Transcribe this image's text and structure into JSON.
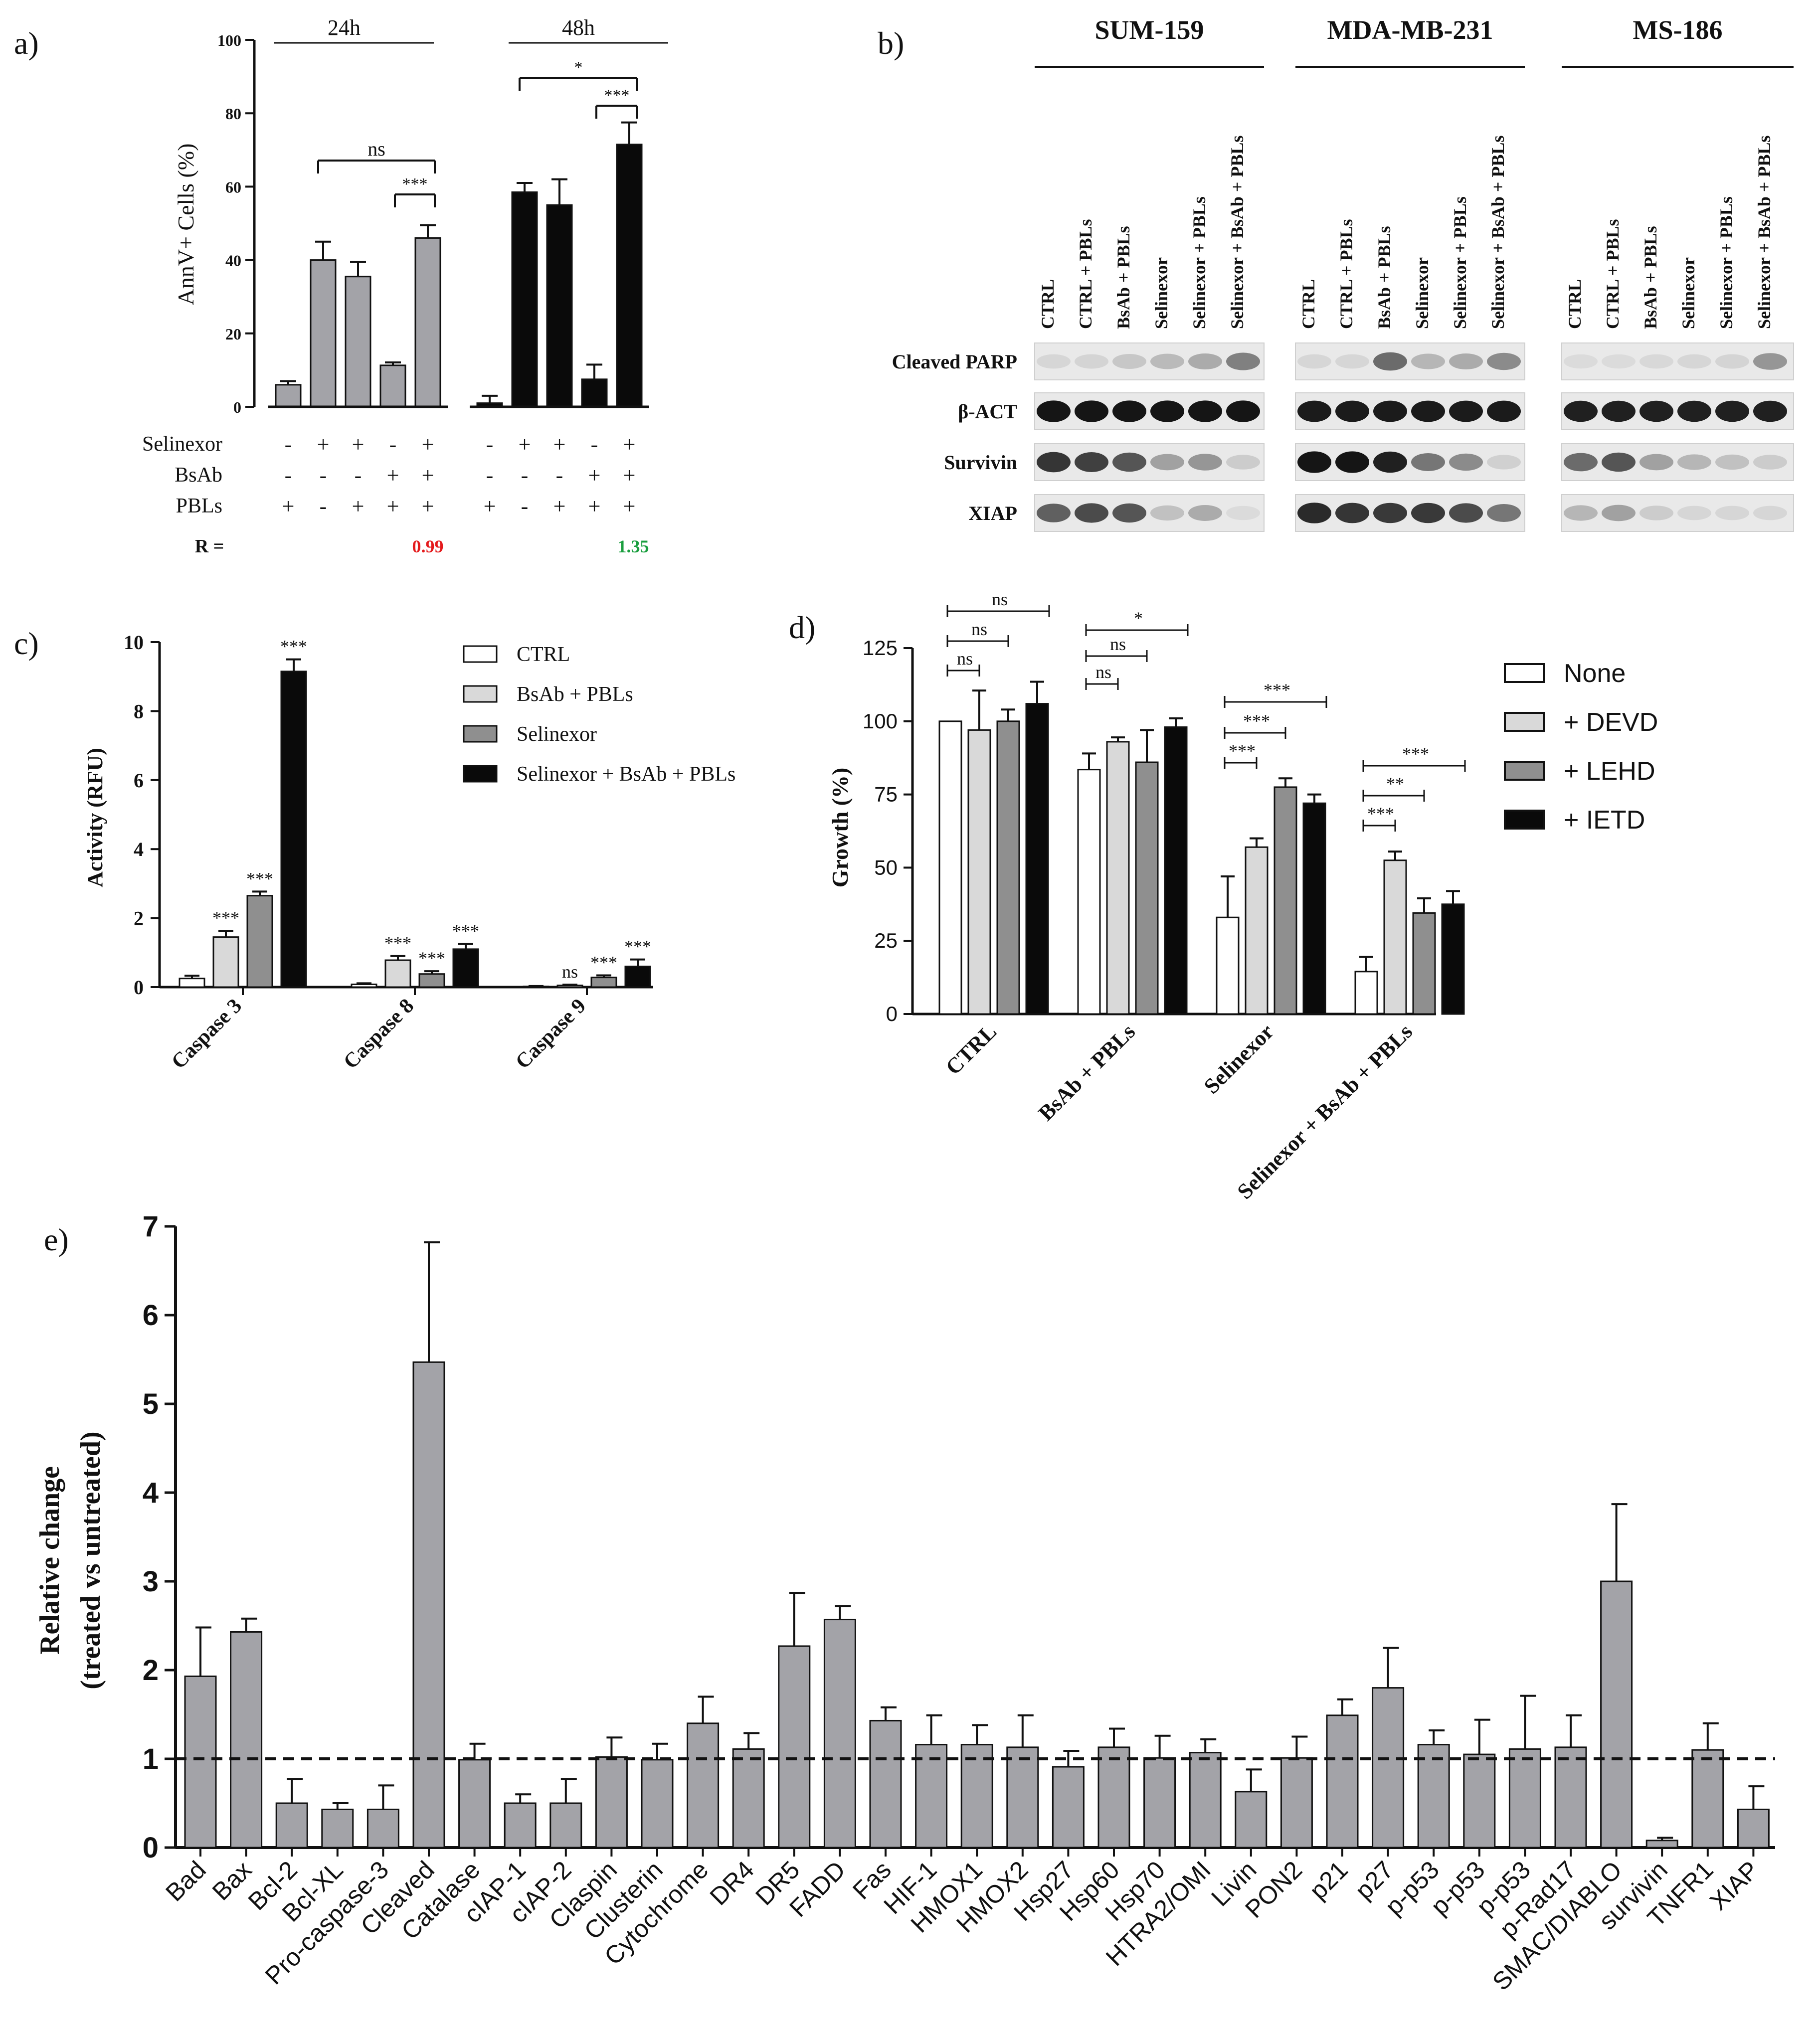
{
  "colors": {
    "black": "#0a0a0a",
    "white": "#ffffff",
    "light_gray": "#d9d9d9",
    "mid_gray": "#8f8f8f",
    "gray_e": "#a3a3a8",
    "red": "#e41a1c",
    "green": "#1a9e3f"
  },
  "chart_data": [
    {
      "panel": "a)",
      "type": "bar",
      "ylabel": "AnnV+ Cells (%)",
      "ylim": [
        0,
        100
      ],
      "yticks": [
        "0",
        "20",
        "40",
        "60",
        "80",
        "100"
      ],
      "groups": [
        {
          "title": "24h",
          "values": [
            6,
            40,
            35.5,
            11.3,
            46
          ],
          "errors": [
            1,
            5,
            4,
            0.8,
            3.5
          ],
          "color": "gray"
        },
        {
          "title": "48h",
          "values": [
            1,
            58.5,
            55,
            7.5,
            71.5
          ],
          "errors": [
            2,
            2.5,
            7,
            4,
            6
          ],
          "color": "black"
        }
      ],
      "condition_rows": [
        {
          "label": "Selinexor",
          "signs": [
            "-",
            "+",
            "+",
            "-",
            "+"
          ]
        },
        {
          "label": "BsAb",
          "signs": [
            "-",
            "-",
            "-",
            "+",
            "+"
          ]
        },
        {
          "label": "PBLs",
          "signs": [
            "+",
            "-",
            "+",
            "+",
            "+"
          ]
        }
      ],
      "r_label": "R =",
      "r_values": [
        "0.99",
        "1.35"
      ],
      "sig": [
        "ns",
        "***",
        "*",
        "***"
      ]
    },
    {
      "panel": "c)",
      "type": "bar",
      "ylabel": "Activity (RFU)",
      "ylim": [
        0,
        10
      ],
      "yticks": [
        "0",
        "2",
        "4",
        "6",
        "8",
        "10"
      ],
      "categories": [
        "Caspase 3",
        "Caspase 8",
        "Caspase 9"
      ],
      "series": [
        {
          "name": "CTRL",
          "values": [
            0.25,
            0.08,
            0.02
          ],
          "errors": [
            0.08,
            0.03,
            0.01
          ]
        },
        {
          "name": "BsAb + PBLs",
          "values": [
            1.45,
            0.78,
            0.05
          ],
          "errors": [
            0.18,
            0.12,
            0.02
          ]
        },
        {
          "name": "Selinexor",
          "values": [
            2.65,
            0.38,
            0.28
          ],
          "errors": [
            0.12,
            0.08,
            0.06
          ]
        },
        {
          "name": "Selinexor + BsAb + PBLs",
          "values": [
            9.15,
            1.1,
            0.6
          ],
          "errors": [
            0.35,
            0.15,
            0.2
          ]
        }
      ],
      "sig": [
        [
          "",
          "***",
          "***",
          "***"
        ],
        [
          "",
          "***",
          "***",
          "***"
        ],
        [
          "",
          "ns",
          "***",
          "***"
        ]
      ]
    },
    {
      "panel": "d)",
      "type": "bar",
      "ylabel": "Growth (%)",
      "ylim": [
        0,
        125
      ],
      "yticks": [
        "0",
        "25",
        "50",
        "75",
        "100",
        "125"
      ],
      "categories": [
        "CTRL",
        "BsAb + PBLs",
        "Selinexor",
        "Selinexor + BsAb + PBLs"
      ],
      "series": [
        {
          "name": "None",
          "values": [
            100,
            83.5,
            33,
            14.5
          ],
          "errors": [
            0,
            5.5,
            14,
            5
          ]
        },
        {
          "name": "+ DEVD",
          "values": [
            97,
            93,
            57,
            52.5
          ],
          "errors": [
            13.5,
            1.5,
            3,
            3
          ]
        },
        {
          "name": "+ LEHD",
          "values": [
            100,
            86,
            77.5,
            34.5
          ],
          "errors": [
            4,
            11,
            3,
            5
          ]
        },
        {
          "name": "+ IETD",
          "values": [
            106,
            98,
            72,
            37.5
          ],
          "errors": [
            7.5,
            3,
            3,
            4.5
          ]
        }
      ],
      "sig": [
        [
          "ns",
          "ns",
          "ns"
        ],
        [
          "ns",
          "ns",
          "*"
        ],
        [
          "***",
          "***",
          "***"
        ],
        [
          "***",
          "**",
          "***"
        ]
      ]
    },
    {
      "panel": "e)",
      "type": "bar",
      "ylabel": [
        "Relative change",
        "(treated vs untreated)"
      ],
      "ylim": [
        0,
        7
      ],
      "yticks": [
        "0",
        "1",
        "2",
        "3",
        "4",
        "5",
        "6",
        "7"
      ],
      "reference_line": 1,
      "categories": [
        "Bad",
        "Bax",
        "Bcl-2",
        "Bcl-XL",
        "Pro-caspase-3",
        "Cleaved",
        "Catalase",
        "cIAP-1",
        "cIAP-2",
        "Claspin",
        "Clusterin",
        "Cytochrome",
        "DR4",
        "DR5",
        "FADD",
        "Fas",
        "HIF-1",
        "HMOX1",
        "HMOX2",
        "Hsp27",
        "Hsp60",
        "Hsp70",
        "HTRA2/OMI",
        "Livin",
        "PON2",
        "p21",
        "p27",
        "p-p53",
        "p-p53",
        "p-p53",
        "p-Rad17",
        "SMAC/DIABLO",
        "survivin",
        "TNFR1",
        "XIAP"
      ],
      "values": [
        1.93,
        2.43,
        0.5,
        0.43,
        0.43,
        5.47,
        0.99,
        0.5,
        0.5,
        1.02,
        0.99,
        1.4,
        1.11,
        2.27,
        2.57,
        1.43,
        1.16,
        1.16,
        1.13,
        0.91,
        1.13,
        1.01,
        1.07,
        0.63,
        1.01,
        1.49,
        1.8,
        1.16,
        1.05,
        1.11,
        1.13,
        3.0,
        0.08,
        1.1,
        0.43
      ],
      "errors": [
        0.55,
        0.15,
        0.27,
        0.07,
        0.27,
        1.35,
        0.18,
        0.1,
        0.27,
        0.22,
        0.18,
        0.3,
        0.18,
        0.6,
        0.15,
        0.15,
        0.33,
        0.22,
        0.36,
        0.18,
        0.21,
        0.25,
        0.15,
        0.25,
        0.24,
        0.18,
        0.45,
        0.16,
        0.39,
        0.6,
        0.36,
        0.87,
        0.03,
        0.3,
        0.26
      ]
    }
  ],
  "western_blot": {
    "panel": "b)",
    "cell_lines": [
      "SUM-159",
      "MDA-MB-231",
      "MS-186"
    ],
    "lanes": [
      "CTRL",
      "CTRL + PBLs",
      "BsAb + PBLs",
      "Selinexor",
      "Selinexor + PBLs",
      "Selinexor + BsAb + PBLs"
    ],
    "proteins": [
      "Cleaved PARP",
      "β-ACT",
      "Survivin",
      "XIAP"
    ],
    "intensity": [
      [
        [
          0.05,
          0.06,
          0.12,
          0.18,
          0.25,
          0.45
        ],
        [
          0.05,
          0.05,
          0.55,
          0.2,
          0.25,
          0.4
        ],
        [
          0.03,
          0.03,
          0.04,
          0.05,
          0.06,
          0.35
        ]
      ],
      [
        [
          0.95,
          0.95,
          0.95,
          0.95,
          0.95,
          0.95
        ],
        [
          0.92,
          0.92,
          0.92,
          0.92,
          0.92,
          0.92
        ],
        [
          0.9,
          0.9,
          0.9,
          0.9,
          0.9,
          0.9
        ]
      ],
      [
        [
          0.8,
          0.75,
          0.65,
          0.3,
          0.35,
          0.1
        ],
        [
          0.95,
          0.95,
          0.9,
          0.5,
          0.4,
          0.08
        ],
        [
          0.55,
          0.65,
          0.3,
          0.2,
          0.15,
          0.1
        ]
      ],
      [
        [
          0.6,
          0.7,
          0.65,
          0.15,
          0.25,
          0.03
        ],
        [
          0.85,
          0.8,
          0.78,
          0.78,
          0.7,
          0.5
        ],
        [
          0.2,
          0.3,
          0.1,
          0.05,
          0.05,
          0.05
        ]
      ]
    ]
  }
}
